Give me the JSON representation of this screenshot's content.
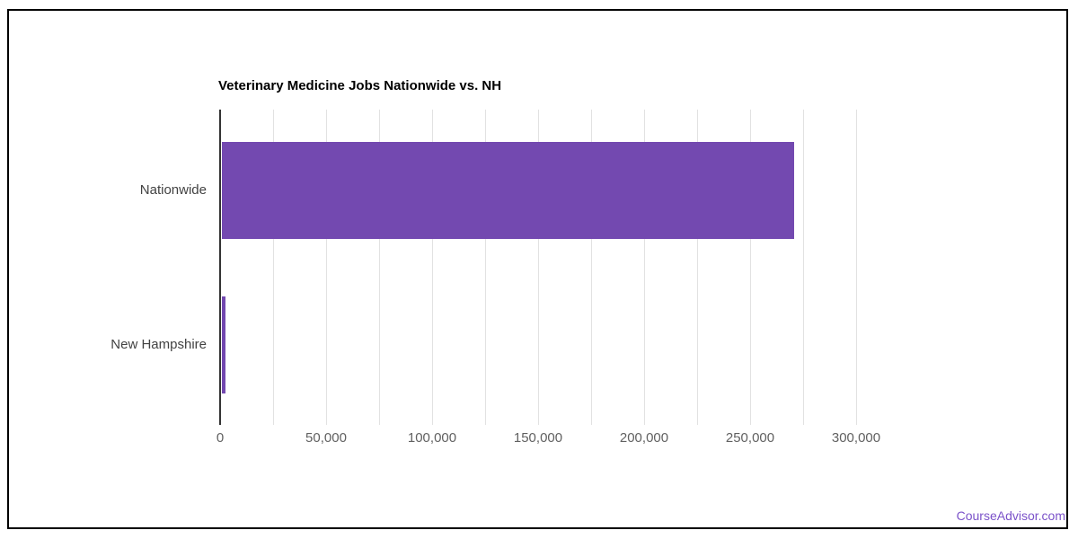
{
  "watermark": {
    "text": "CourseAdvisor.com",
    "color": "#7B52C9"
  },
  "chart_data": {
    "type": "bar",
    "orientation": "horizontal",
    "title": "Veterinary Medicine Jobs Nationwide vs. NH",
    "categories": [
      "Nationwide",
      "New Hampshire"
    ],
    "values": [
      270000,
      1700
    ],
    "xlabel": "",
    "ylabel": "",
    "x_tick_labels": [
      "0",
      "50,000",
      "100,000",
      "150,000",
      "200,000",
      "250,000",
      "300,000"
    ],
    "x_tick_values": [
      0,
      50000,
      100000,
      150000,
      200000,
      250000,
      300000
    ],
    "x_minor_gridline_step": 25000,
    "xlim": [
      0,
      325000
    ],
    "grid": true,
    "legend": "none",
    "bar_color": "#7349B0",
    "axis_line_color": "#333333",
    "gridline_color": "#e2e2e2",
    "title_color": "#000000",
    "category_label_color": "#424242",
    "tick_label_color": "#616161"
  }
}
